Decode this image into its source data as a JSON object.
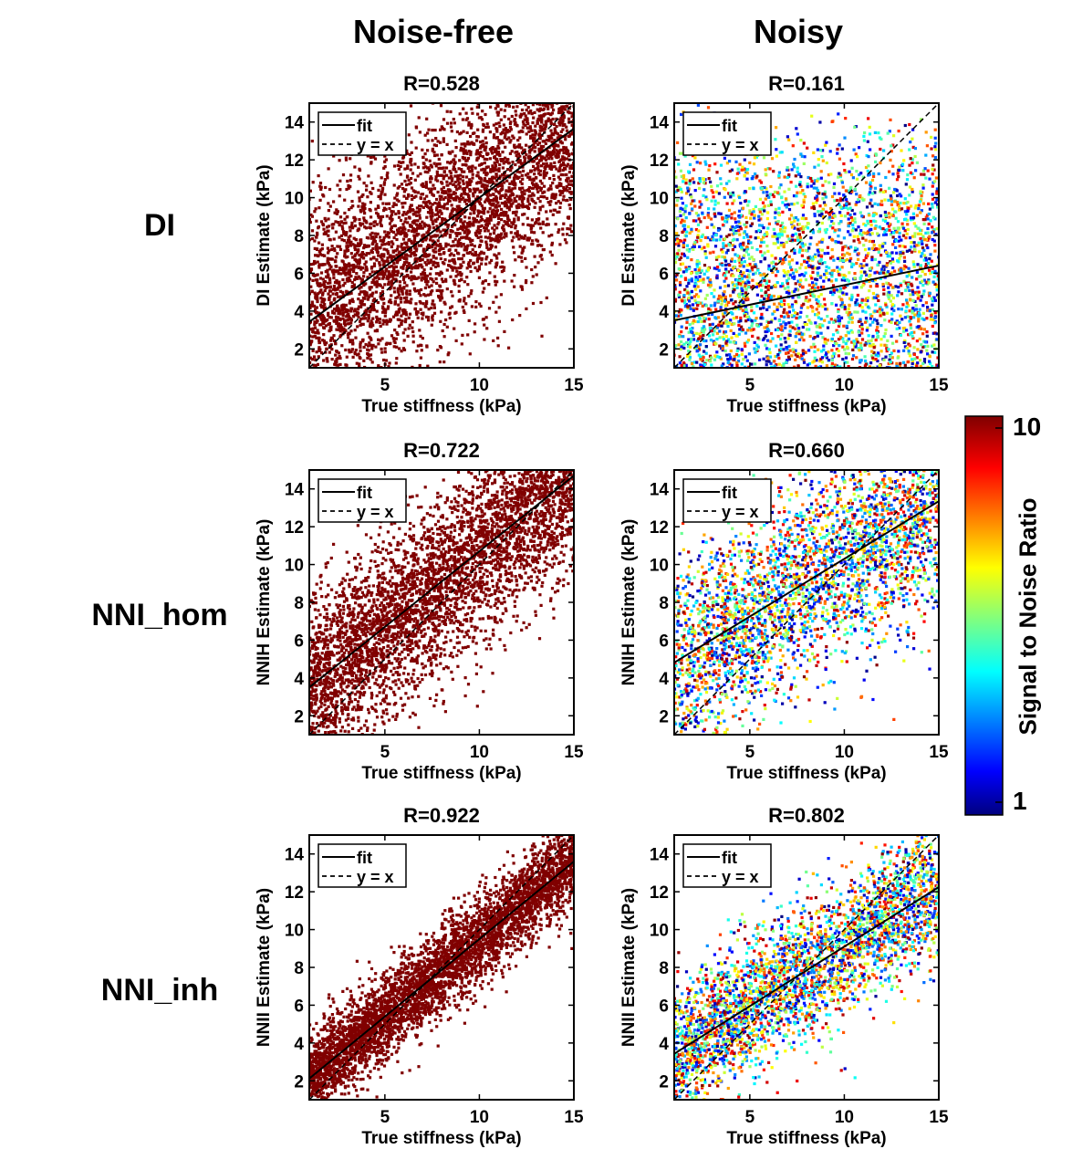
{
  "column_titles": [
    "Noise-free",
    "Noisy"
  ],
  "row_labels": [
    "DI",
    "NNI_hom",
    "NNI_inh"
  ],
  "colorbar": {
    "label": "Signal to Noise Ratio",
    "min_label": "1",
    "max_label": "10",
    "range": [
      1,
      10
    ]
  },
  "chart_data": [
    {
      "type": "scatter",
      "title": "R=0.528",
      "xlabel": "True stiffness (kPa)",
      "ylabel": "DI Estimate (kPa)",
      "xlim": [
        1,
        15
      ],
      "ylim": [
        1,
        15
      ],
      "xticks": [
        5,
        10,
        15
      ],
      "yticks": [
        2,
        4,
        6,
        8,
        10,
        12,
        14
      ],
      "colored": false,
      "point_color": "#800000",
      "fit": {
        "slope": 0.73,
        "intercept": 2.7
      },
      "identity": true,
      "legend": [
        "fit",
        "y = x"
      ],
      "spread": 3.8,
      "seed": 11
    },
    {
      "type": "scatter",
      "title": "R=0.161",
      "xlabel": "True stiffness (kPa)",
      "ylabel": "DI Estimate (kPa)",
      "xlim": [
        1,
        15
      ],
      "ylim": [
        1,
        15
      ],
      "xticks": [
        5,
        10,
        15
      ],
      "yticks": [
        2,
        4,
        6,
        8,
        10,
        12,
        14
      ],
      "colored": true,
      "fit": {
        "slope": 0.207,
        "intercept": 3.3
      },
      "identity": true,
      "legend": [
        "fit",
        "y = x"
      ],
      "spread": 6.5,
      "seed": 22
    },
    {
      "type": "scatter",
      "title": "R=0.722",
      "xlabel": "True stiffness (kPa)",
      "ylabel": "NNIH Estimate (kPa)",
      "xlim": [
        1,
        15
      ],
      "ylim": [
        1,
        15
      ],
      "xticks": [
        5,
        10,
        15
      ],
      "yticks": [
        2,
        4,
        6,
        8,
        10,
        12,
        14
      ],
      "colored": false,
      "point_color": "#800000",
      "fit": {
        "slope": 0.8,
        "intercept": 2.7
      },
      "identity": true,
      "legend": [
        "fit",
        "y = x"
      ],
      "spread": 3.0,
      "seed": 33
    },
    {
      "type": "scatter",
      "title": "R=0.660",
      "xlabel": "True stiffness (kPa)",
      "ylabel": "NNIH Estimate (kPa)",
      "xlim": [
        1,
        15
      ],
      "ylim": [
        1,
        15
      ],
      "xticks": [
        5,
        10,
        15
      ],
      "yticks": [
        2,
        4,
        6,
        8,
        10,
        12,
        14
      ],
      "colored": true,
      "fit": {
        "slope": 0.61,
        "intercept": 4.2
      },
      "identity": true,
      "legend": [
        "fit",
        "y = x"
      ],
      "spread": 3.4,
      "seed": 44
    },
    {
      "type": "scatter",
      "title": "R=0.922",
      "xlabel": "True stiffness (kPa)",
      "ylabel": "NNII Estimate (kPa)",
      "xlim": [
        1,
        15
      ],
      "ylim": [
        1,
        15
      ],
      "xticks": [
        5,
        10,
        15
      ],
      "yticks": [
        2,
        4,
        6,
        8,
        10,
        12,
        14
      ],
      "colored": false,
      "point_color": "#800000",
      "fit": {
        "slope": 0.82,
        "intercept": 1.3
      },
      "identity": true,
      "legend": [
        "fit",
        "y = x"
      ],
      "spread": 1.4,
      "seed": 55
    },
    {
      "type": "scatter",
      "title": "R=0.802",
      "xlabel": "True stiffness (kPa)",
      "ylabel": "NNII Estimate (kPa)",
      "xlim": [
        1,
        15
      ],
      "ylim": [
        1,
        15
      ],
      "xticks": [
        5,
        10,
        15
      ],
      "yticks": [
        2,
        4,
        6,
        8,
        10,
        12,
        14
      ],
      "colored": true,
      "fit": {
        "slope": 0.63,
        "intercept": 2.8
      },
      "identity": true,
      "legend": [
        "fit",
        "y = x"
      ],
      "spread": 2.2,
      "seed": 66
    }
  ]
}
